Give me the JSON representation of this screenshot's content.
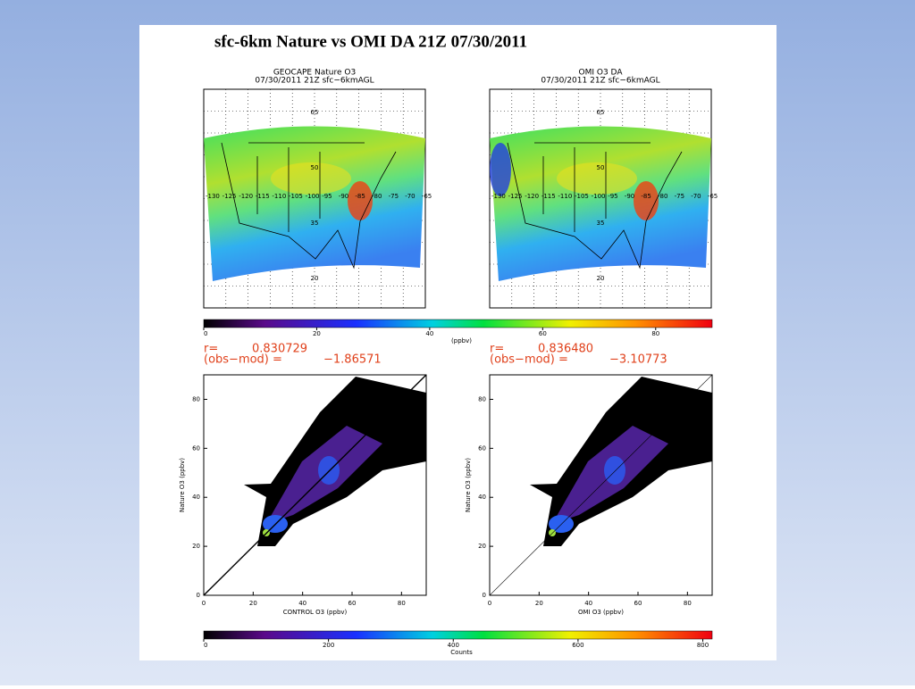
{
  "title": "sfc-6km Nature vs OMI DA 21Z 07/30/2011",
  "maps": [
    {
      "title": "GEOCAPE Nature O3",
      "subtitle": "07/30/2011 21Z sfc−6kmAGL"
    },
    {
      "title": "OMI O3 DA",
      "subtitle": "07/30/2011 21Z sfc−6kmAGL"
    }
  ],
  "map_grid": {
    "lats": [
      65,
      50,
      35,
      20
    ],
    "lons": [
      -130,
      -125,
      -120,
      -115,
      -110,
      -105,
      -100,
      -95,
      -90,
      -85,
      -80,
      -75,
      -70,
      -65
    ]
  },
  "map_colorbar": {
    "range": [
      0,
      90
    ],
    "ticks": [
      0,
      20,
      40,
      60,
      80
    ],
    "label": "(ppbv)"
  },
  "stats": [
    {
      "r_label": "r=",
      "r": "0.830729",
      "bias_label": "(obs−mod) =",
      "bias": "−1.86571"
    },
    {
      "r_label": "r=",
      "r": "0.836480",
      "bias_label": "(obs−mod) =",
      "bias": "−3.10773"
    }
  ],
  "scatter": [
    {
      "xlabel": "CONTROL O3 (ppbv)",
      "ylabel": "Nature O3 (ppbv)",
      "xlim": [
        0,
        90
      ],
      "ylim": [
        0,
        90
      ],
      "xticks": [
        0,
        20,
        40,
        60,
        80
      ],
      "yticks": [
        0,
        20,
        40,
        60,
        80
      ]
    },
    {
      "xlabel": "OMI O3 (ppbv)",
      "ylabel": "Nature O3 (ppbv)",
      "xlim": [
        0,
        90
      ],
      "ylim": [
        0,
        90
      ],
      "xticks": [
        0,
        20,
        40,
        60,
        80
      ],
      "yticks": [
        0,
        20,
        40,
        60,
        80
      ]
    }
  ],
  "count_colorbar": {
    "range": [
      0,
      815
    ],
    "ticks": [
      0,
      200,
      400,
      600,
      800
    ],
    "label": "Counts"
  }
}
